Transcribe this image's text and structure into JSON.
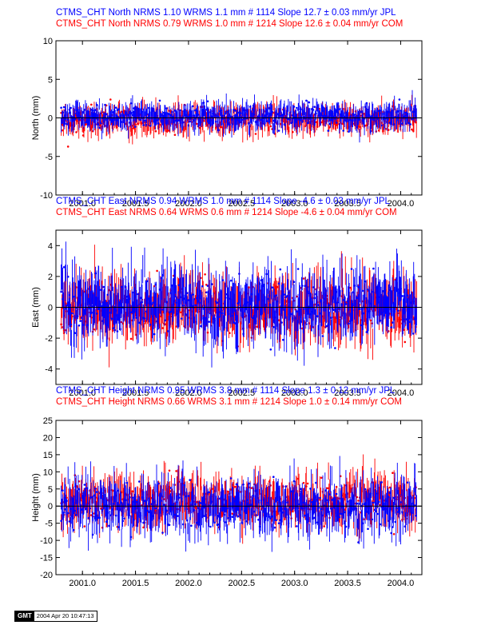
{
  "chart_data": [
    {
      "type": "scatter",
      "title_lines": [
        {
          "text": "CTMS_CHT North NRMS 1.10 WRMS  1.1 mm # 1114 Slope   12.7 ±  0.03 mm/yr JPL",
          "color": "#0000ff"
        },
        {
          "text": "CTMS_CHT North NRMS 0.79 WRMS  1.0 mm # 1214 Slope   12.6 ±  0.04 mm/yr COM",
          "color": "#ff0000"
        }
      ],
      "ylabel": "North (mm)",
      "xlim": [
        2000.75,
        2004.2
      ],
      "ylim": [
        -10,
        10
      ],
      "x_ticks": [
        2001.0,
        2001.5,
        2002.0,
        2002.5,
        2003.0,
        2003.5,
        2004.0
      ],
      "x_tick_labels": [
        "2001.0",
        "2001.5",
        "2002.0",
        "2002.5",
        "2003.0",
        "2003.5",
        "2004.0"
      ],
      "y_ticks": [
        -10,
        -5,
        0,
        5,
        10
      ],
      "y_tick_labels": [
        "-10",
        "-5",
        "0",
        "5",
        "10"
      ],
      "x_start": 2000.8,
      "x_end": 2004.15,
      "zero_line": true,
      "series": [
        {
          "color": "#ff0000",
          "amplitude": 0.85,
          "errorbar": 0.95,
          "offset": -0.3
        },
        {
          "color": "#0000ff",
          "amplitude": 0.75,
          "errorbar": 1.05,
          "offset": 0.2
        }
      ]
    },
    {
      "type": "scatter",
      "title_lines": [
        {
          "text": "CTMS_CHT East NRMS 0.94 WRMS  1.0 mm # 1114 Slope   -4.6 ±  0.03 mm/yr JPL",
          "color": "#0000ff"
        },
        {
          "text": "CTMS_CHT East NRMS 0.64 WRMS  0.6 mm # 1214 Slope   -4.6 ±  0.04 mm/yr COM",
          "color": "#ff0000"
        }
      ],
      "ylabel": "East (mm)",
      "xlim": [
        2000.75,
        2004.2
      ],
      "ylim": [
        -5,
        5
      ],
      "x_ticks": [
        2001.0,
        2001.5,
        2002.0,
        2002.5,
        2003.0,
        2003.5,
        2004.0
      ],
      "x_tick_labels": [
        "2001.0",
        "2001.5",
        "2002.0",
        "2002.5",
        "2003.0",
        "2003.5",
        "2004.0"
      ],
      "y_ticks": [
        -4,
        -2,
        0,
        2,
        4
      ],
      "y_tick_labels": [
        "-4",
        "-2",
        "0",
        "2",
        "4"
      ],
      "x_start": 2000.8,
      "x_end": 2004.15,
      "zero_line": true,
      "series": [
        {
          "color": "#ff0000",
          "amplitude": 0.9,
          "errorbar": 1.1,
          "offset": -0.1
        },
        {
          "color": "#0000ff",
          "amplitude": 0.95,
          "errorbar": 1.25,
          "offset": 0.15
        }
      ]
    },
    {
      "type": "scatter",
      "title_lines": [
        {
          "text": "CTMS_CHT Height NRMS 0.95 WRMS  3.8 mm # 1114 Slope    1.3 ±  0.12 mm/yr JPL",
          "color": "#0000ff"
        },
        {
          "text": "CTMS_CHT Height NRMS 0.66 WRMS  3.1 mm # 1214 Slope    1.0 ±  0.14 mm/yr COM",
          "color": "#ff0000"
        }
      ],
      "ylabel": "Height (mm)",
      "xlim": [
        2000.75,
        2004.2
      ],
      "ylim": [
        -20,
        25
      ],
      "x_ticks": [
        2001.0,
        2001.5,
        2002.0,
        2002.5,
        2003.0,
        2003.5,
        2004.0
      ],
      "x_tick_labels": [
        "2001.0",
        "2001.5",
        "2002.0",
        "2002.5",
        "2003.0",
        "2003.5",
        "2004.0"
      ],
      "y_ticks": [
        -20,
        -15,
        -10,
        -5,
        0,
        5,
        10,
        15,
        20,
        25
      ],
      "y_tick_labels": [
        "-20",
        "-15",
        "-10",
        "-5",
        "0",
        "5",
        "10",
        "15",
        "20",
        "25"
      ],
      "x_start": 2000.8,
      "x_end": 2004.15,
      "zero_line": true,
      "series": [
        {
          "color": "#ff0000",
          "amplitude": 3.2,
          "errorbar": 3.8,
          "offset": 1.5
        },
        {
          "color": "#0000ff",
          "amplitude": 3.6,
          "errorbar": 4.2,
          "offset": 0.0
        }
      ]
    }
  ],
  "footer": {
    "logo": "GMT",
    "timestamp": "2004 Apr 20 10:47:13"
  }
}
